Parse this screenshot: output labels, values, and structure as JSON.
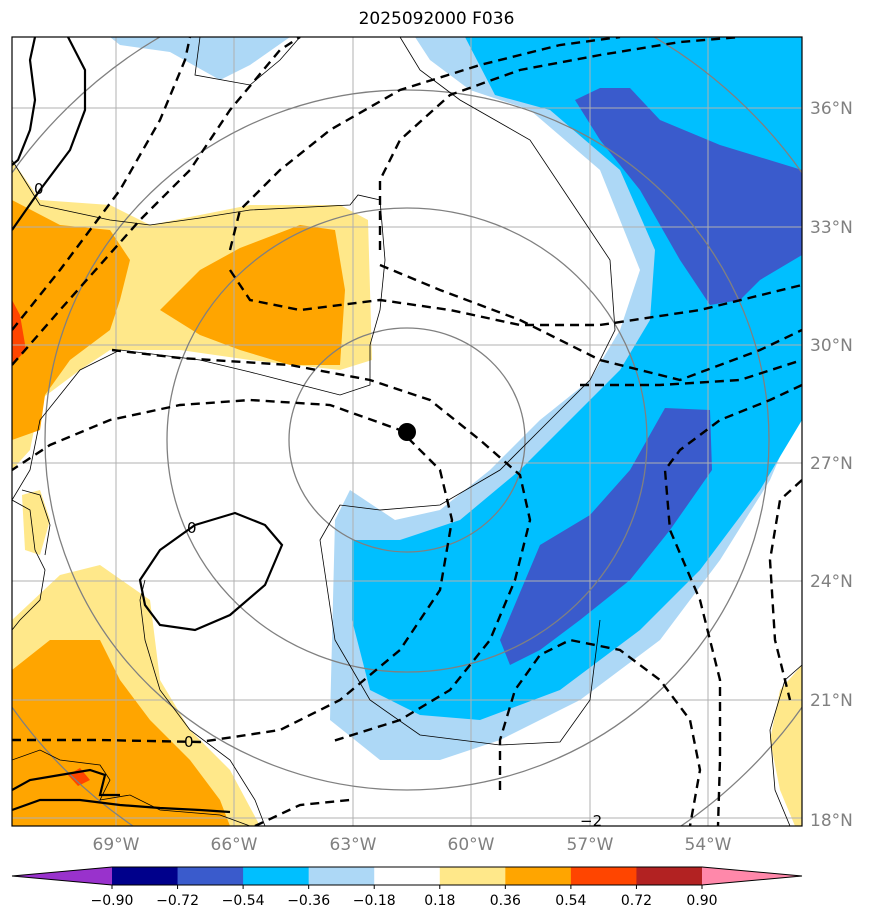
{
  "title": "2025092000 F036",
  "lat_labels": [
    "36°N",
    "33°N",
    "30°N",
    "27°N",
    "24°N",
    "21°N",
    "18°N"
  ],
  "lon_labels": [
    "69°W",
    "66°W",
    "63°W",
    "60°W",
    "57°W",
    "54°W"
  ],
  "colorbar": {
    "labels": [
      "−0.90",
      "−0.72",
      "−0.54",
      "−0.36",
      "−0.18",
      "0.18",
      "0.36",
      "0.54",
      "0.72",
      "0.90"
    ],
    "colors": [
      "#9932cc",
      "#00008b",
      "#3a5bcc",
      "#00bfff",
      "#add8f6",
      "#ffffff",
      "#ffe88a",
      "#ffa500",
      "#ff4500",
      "#b22222",
      "#ff88aa"
    ]
  },
  "contour_labels": [
    "0",
    "0",
    "0",
    "−2"
  ],
  "colors": {
    "grid": "#b0b0b0",
    "ring": "#808080",
    "coast": "#000000"
  }
}
